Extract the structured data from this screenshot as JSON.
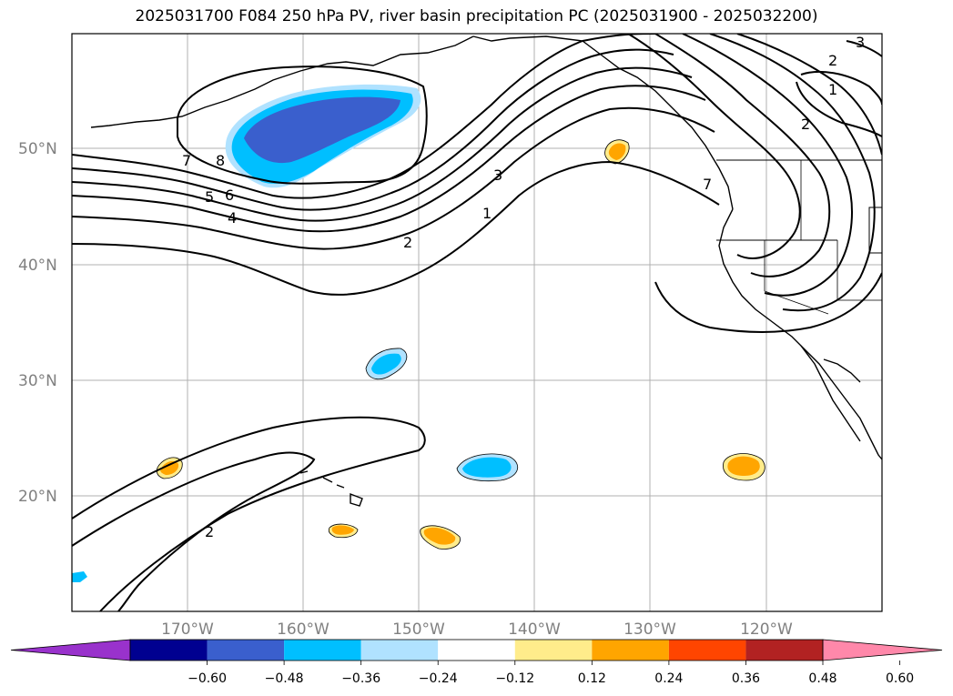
{
  "title": "2025031700 F084 250 hPa PV, river basin precipitation PC (2025031900 - 2025032200)",
  "lat_labels": [
    "50°N",
    "40°N",
    "30°N",
    "20°N"
  ],
  "lon_labels": [
    "170°W",
    "160°W",
    "150°W",
    "140°W",
    "130°W",
    "120°W"
  ],
  "colorbar": {
    "ticks": [
      "−0.60",
      "−0.48",
      "−0.36",
      "−0.24",
      "−0.12",
      "0.12",
      "0.24",
      "0.36",
      "0.48",
      "0.60"
    ],
    "colors": [
      "#9932cc",
      "#000090",
      "#3a5fcd",
      "#00bfff",
      "#b0e2ff",
      "#ffffff",
      "#ffec8b",
      "#ffa500",
      "#ff4500",
      "#b22222",
      "#ff88aa"
    ]
  },
  "contour_labels": [
    "7",
    "8",
    "5",
    "6",
    "4",
    "2",
    "3",
    "1",
    "2",
    "1",
    "2",
    "3",
    "7",
    "2"
  ]
}
